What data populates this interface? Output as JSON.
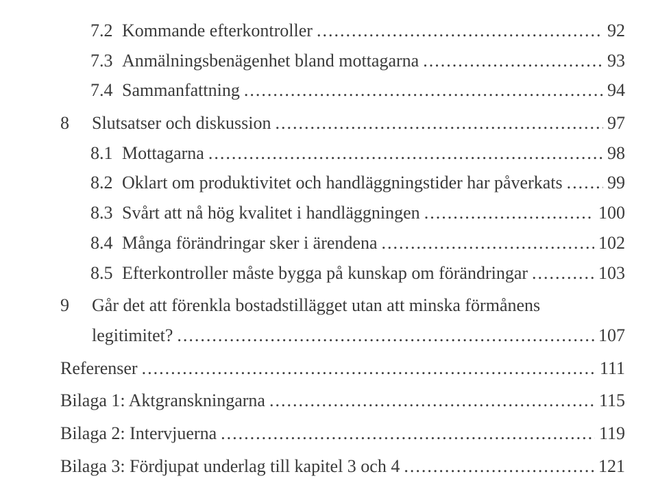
{
  "text_color": "#3a3a3a",
  "background_color": "#ffffff",
  "font_family": "Times New Roman, serif",
  "base_fontsize_pt": 19,
  "entries": [
    {
      "type": "sub",
      "num": "7.2",
      "title": "Kommande efterkontroller",
      "page": "92"
    },
    {
      "type": "sub",
      "num": "7.3",
      "title": "Anmälningsbenägenhet bland mottagarna",
      "page": "93"
    },
    {
      "type": "sub",
      "num": "7.4",
      "title": "Sammanfattning",
      "page": "94"
    },
    {
      "type": "chap",
      "num": "8",
      "title": "Slutsatser och diskussion",
      "page": "97"
    },
    {
      "type": "sub",
      "num": "8.1",
      "title": "Mottagarna",
      "page": "98"
    },
    {
      "type": "sub",
      "num": "8.2",
      "title": "Oklart om produktivitet och handläggningstider har påverkats",
      "page": "99"
    },
    {
      "type": "sub",
      "num": "8.3",
      "title": "Svårt att nå hög kvalitet i handläggningen",
      "page": "100"
    },
    {
      "type": "sub",
      "num": "8.4",
      "title": "Många förändringar sker i ärendena",
      "page": "102"
    },
    {
      "type": "sub",
      "num": "8.5",
      "title": "Efterkontroller måste bygga på kunskap om förändringar",
      "page": "103"
    },
    {
      "type": "chap",
      "num": "9",
      "title_line1": "Går det att förenkla bostadstillägget utan att minska förmånens",
      "title_line2": "legitimitet?",
      "page": "107"
    },
    {
      "type": "plain",
      "title": "Referenser",
      "page": "111"
    },
    {
      "type": "plain",
      "title": "Bilaga 1: Aktgranskningarna",
      "page": "115"
    },
    {
      "type": "plain",
      "title": "Bilaga 2: Intervjuerna",
      "page": "119"
    },
    {
      "type": "plain",
      "title": "Bilaga 3: Fördjupat underlag till kapitel 3 och 4",
      "page": "121"
    }
  ],
  "leader_char": "."
}
